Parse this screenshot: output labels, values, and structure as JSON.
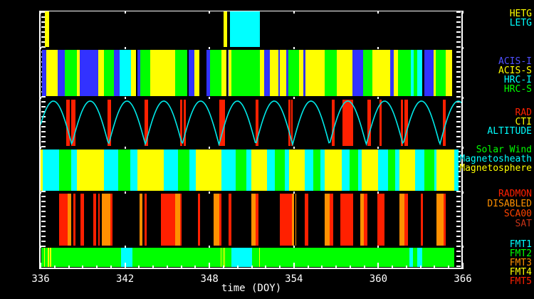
{
  "chart_data": {
    "type": "timeline",
    "xlabel": "time (DOY)",
    "x_range": [
      336,
      366
    ],
    "x_major_ticks": [
      336,
      342,
      348,
      354,
      360,
      366
    ],
    "x_minor_step": 1,
    "grid": false,
    "legend_position": "right",
    "colors": {
      "HETG": "#ffff00",
      "LETG": "#00ffff",
      "ACIS-I": "#3232ff",
      "ACIS-S": "#ffff00",
      "HRC-I": "#00ffff",
      "HRC-S": "#00ff00",
      "RAD": "#ff2000",
      "CTI": "#ffff00",
      "ALTITUDE": "#00e8e8",
      "Solar Wind": "#00ff00",
      "Magnetosheath": "#00ffff",
      "Magnetosphere": "#ffff00",
      "RADMON": "#ff2000",
      "DISABLED": "#ff9000",
      "SCA00": "#ff4400",
      "SAT": "#c63318",
      "FMT1": "#00ffff",
      "FMT2": "#00ff00",
      "FMT3": "#ff9000",
      "FMT4": "#ffff00",
      "FMT5": "#ff2000",
      "axis": "#ffffff",
      "background": "#000000"
    },
    "bands": [
      {
        "id": "grating",
        "labels": [
          {
            "text": "HETG",
            "color": "#ffff00"
          },
          {
            "text": "LETG",
            "color": "#00ffff"
          }
        ],
        "segments": [
          [
            336.3,
            336.62,
            "HETG"
          ],
          [
            349.0,
            349.25,
            "HETG"
          ],
          [
            349.45,
            351.6,
            "LETG"
          ]
        ]
      },
      {
        "id": "instruments",
        "labels": [
          {
            "text": "ACIS-I",
            "color": "#5050ff"
          },
          {
            "text": "ACIS-S",
            "color": "#ffff00"
          },
          {
            "text": "HRC-I",
            "color": "#00ffff"
          },
          {
            "text": "HRC-S",
            "color": "#00ff00"
          }
        ],
        "segments": [
          [
            336.1,
            336.4,
            "ACIS-I"
          ],
          [
            336.4,
            337.2,
            "ACIS-S"
          ],
          [
            337.2,
            337.7,
            "ACIS-I"
          ],
          [
            337.7,
            338.6,
            "HRC-S"
          ],
          [
            338.6,
            338.8,
            "ACIS-S"
          ],
          [
            338.8,
            340.1,
            "ACIS-I"
          ],
          [
            340.1,
            340.5,
            "ACIS-S"
          ],
          [
            340.5,
            341.2,
            "HRC-S"
          ],
          [
            341.2,
            341.6,
            "ACIS-I"
          ],
          [
            341.6,
            342.4,
            "HRC-I"
          ],
          [
            342.4,
            342.8,
            "ACIS-S"
          ],
          [
            342.9,
            343.1,
            "ACIS-I"
          ],
          [
            343.1,
            343.8,
            "HRC-S"
          ],
          [
            343.8,
            345.55,
            "ACIS-S"
          ],
          [
            345.55,
            346.4,
            "HRC-S"
          ],
          [
            346.5,
            346.95,
            "ACIS-I"
          ],
          [
            346.95,
            347.3,
            "ACIS-S"
          ],
          [
            347.8,
            348.05,
            "ACIS-I"
          ],
          [
            348.05,
            348.85,
            "HRC-S"
          ],
          [
            348.85,
            349.2,
            "ACIS-S"
          ],
          [
            349.28,
            349.36,
            "ACIS-I"
          ],
          [
            349.36,
            349.56,
            "ACIS-S"
          ],
          [
            349.56,
            351.6,
            "HRC-S"
          ],
          [
            351.6,
            351.88,
            "ACIS-S"
          ],
          [
            351.88,
            352.3,
            "ACIS-I"
          ],
          [
            352.3,
            352.88,
            "ACIS-S"
          ],
          [
            352.88,
            353.0,
            "ACIS-I"
          ],
          [
            353.0,
            353.45,
            "ACIS-S"
          ],
          [
            353.45,
            353.6,
            "ACIS-I"
          ],
          [
            353.6,
            354.36,
            "HRC-S"
          ],
          [
            354.36,
            354.67,
            "ACIS-S"
          ],
          [
            354.67,
            354.82,
            "ACIS-I"
          ],
          [
            354.82,
            356.18,
            "ACIS-S"
          ],
          [
            356.18,
            357.04,
            "HRC-S"
          ],
          [
            357.04,
            358.16,
            "ACIS-S"
          ],
          [
            358.16,
            358.91,
            "ACIS-I"
          ],
          [
            358.91,
            359.57,
            "HRC-S"
          ],
          [
            359.57,
            360.84,
            "ACIS-S"
          ],
          [
            360.84,
            361.09,
            "ACIS-I"
          ],
          [
            361.09,
            361.39,
            "ACIS-S"
          ],
          [
            361.39,
            362.3,
            "HRC-S"
          ],
          [
            362.3,
            362.51,
            "HRC-I"
          ],
          [
            362.51,
            362.76,
            "HRC-S"
          ],
          [
            362.76,
            363.11,
            "HRC-I"
          ],
          [
            363.26,
            363.92,
            "ACIS-I"
          ],
          [
            363.92,
            364.07,
            "ACIS-S"
          ],
          [
            364.07,
            364.78,
            "HRC-S"
          ],
          [
            364.78,
            365.24,
            "ACIS-S"
          ]
        ]
      },
      {
        "id": "rad",
        "labels": [
          {
            "text": "RAD",
            "color": "#ff2000"
          },
          {
            "text": "CTI",
            "color": "#ffff00"
          },
          {
            "text": "ALTITUDE",
            "color": "#00ffff"
          }
        ],
        "curve": {
          "name": "ALTITUDE",
          "first_peak": 336.91,
          "period": 2.615,
          "color": "#00e8e8"
        },
        "segments": [
          [
            337.8,
            338.05,
            "RAD"
          ],
          [
            338.15,
            338.5,
            "RAD"
          ],
          [
            340.75,
            341.0,
            "RAD"
          ],
          [
            343.4,
            343.65,
            "RAD"
          ],
          [
            345.9,
            346.05,
            "RAD"
          ],
          [
            346.15,
            346.3,
            "RAD"
          ],
          [
            348.7,
            349.1,
            "RAD"
          ],
          [
            351.28,
            351.48,
            "RAD"
          ],
          [
            353.6,
            353.76,
            "RAD"
          ],
          [
            353.81,
            353.92,
            "RAD"
          ],
          [
            356.69,
            356.89,
            "RAD"
          ],
          [
            357.45,
            358.21,
            "RAD"
          ],
          [
            359.22,
            359.47,
            "RAD"
          ],
          [
            360.08,
            360.25,
            "RAD"
          ],
          [
            361.6,
            361.75,
            "RAD"
          ],
          [
            361.85,
            362.1,
            "RAD"
          ],
          [
            364.6,
            364.8,
            "RAD"
          ]
        ]
      },
      {
        "id": "msphere",
        "labels": [
          {
            "text": "Solar Wind",
            "color": "#00ff00"
          },
          {
            "text": "Magnetosheath",
            "color": "#00ffff"
          },
          {
            "text": "Magnetosphere",
            "color": "#ffff00"
          }
        ],
        "segments": [
          [
            336.0,
            336.15,
            "Magnetosphere"
          ],
          [
            336.15,
            337.3,
            "Magnetosheath"
          ],
          [
            337.3,
            338.17,
            "Solar Wind"
          ],
          [
            338.17,
            338.58,
            "Magnetosheath"
          ],
          [
            338.58,
            340.5,
            "Magnetosphere"
          ],
          [
            340.5,
            341.51,
            "Magnetosheath"
          ],
          [
            341.51,
            342.37,
            "Solar Wind"
          ],
          [
            342.37,
            342.88,
            "Magnetosheath"
          ],
          [
            342.88,
            344.75,
            "Magnetosphere"
          ],
          [
            344.75,
            345.76,
            "Magnetosheath"
          ],
          [
            345.76,
            346.57,
            "Solar Wind"
          ],
          [
            346.57,
            347.03,
            "Magnetosheath"
          ],
          [
            347.03,
            348.85,
            "Magnetosphere"
          ],
          [
            348.85,
            349.86,
            "Magnetosheath"
          ],
          [
            349.86,
            350.62,
            "Solar Wind"
          ],
          [
            350.62,
            350.97,
            "Magnetosheath"
          ],
          [
            350.97,
            352.08,
            "Magnetosphere"
          ],
          [
            352.08,
            352.64,
            "Magnetosheath"
          ],
          [
            352.64,
            353.35,
            "Solar Wind"
          ],
          [
            353.35,
            353.65,
            "Magnetosheath"
          ],
          [
            353.65,
            354.77,
            "Magnetosphere"
          ],
          [
            354.77,
            355.37,
            "Magnetosheath"
          ],
          [
            355.37,
            355.88,
            "Solar Wind"
          ],
          [
            355.88,
            356.18,
            "Magnetosheath"
          ],
          [
            356.18,
            357.4,
            "Magnetosphere"
          ],
          [
            357.4,
            357.95,
            "Magnetosheath"
          ],
          [
            357.95,
            358.56,
            "Solar Wind"
          ],
          [
            358.56,
            358.81,
            "Magnetosheath"
          ],
          [
            358.81,
            359.98,
            "Magnetosphere"
          ],
          [
            359.98,
            360.68,
            "Magnetosheath"
          ],
          [
            360.68,
            361.19,
            "Solar Wind"
          ],
          [
            361.19,
            361.49,
            "Magnetosheath"
          ],
          [
            361.49,
            362.61,
            "Magnetosphere"
          ],
          [
            362.61,
            363.26,
            "Magnetosheath"
          ],
          [
            363.26,
            363.97,
            "Solar Wind"
          ],
          [
            363.97,
            364.12,
            "Magnetosheath"
          ],
          [
            364.12,
            365.39,
            "Magnetosphere"
          ],
          [
            365.39,
            365.7,
            "Magnetosheath"
          ]
        ]
      },
      {
        "id": "radmon",
        "labels": [
          {
            "text": "RADMON",
            "color": "#ff2000"
          },
          {
            "text": "DISABLED",
            "color": "#ff9000"
          },
          {
            "text": "SCA00",
            "color": "#ff4400"
          },
          {
            "text": "SAT",
            "color": "#c63318"
          }
        ],
        "segments": [
          [
            337.3,
            337.92,
            "RADMON"
          ],
          [
            337.92,
            338.17,
            "DISABLED"
          ],
          [
            338.33,
            338.48,
            "RADMON"
          ],
          [
            338.83,
            339.09,
            "RADMON"
          ],
          [
            339.74,
            339.94,
            "RADMON"
          ],
          [
            340.1,
            340.2,
            "RADMON"
          ],
          [
            340.35,
            340.96,
            "DISABLED"
          ],
          [
            340.96,
            341.11,
            "RADMON"
          ],
          [
            343.03,
            343.23,
            "DISABLED"
          ],
          [
            343.38,
            343.54,
            "RADMON"
          ],
          [
            344.55,
            345.56,
            "RADMON"
          ],
          [
            345.56,
            345.91,
            "DISABLED"
          ],
          [
            345.91,
            346.01,
            "RADMON"
          ],
          [
            347.18,
            347.33,
            "RADMON"
          ],
          [
            348.29,
            348.7,
            "DISABLED"
          ],
          [
            348.7,
            348.85,
            "RADMON"
          ],
          [
            349.35,
            349.56,
            "RADMON"
          ],
          [
            350.97,
            351.28,
            "DISABLED"
          ],
          [
            351.28,
            351.48,
            "RADMON"
          ],
          [
            353.0,
            353.86,
            "RADMON"
          ],
          [
            353.86,
            354.01,
            "DISABLED"
          ],
          [
            354.1,
            354.16,
            "DISABLED"
          ],
          [
            354.77,
            355.02,
            "RADMON"
          ],
          [
            356.18,
            356.54,
            "DISABLED"
          ],
          [
            356.54,
            356.79,
            "RADMON"
          ],
          [
            357.3,
            358.21,
            "RADMON"
          ],
          [
            358.71,
            358.96,
            "DISABLED"
          ],
          [
            358.96,
            359.22,
            "RADMON"
          ],
          [
            359.93,
            360.43,
            "RADMON"
          ],
          [
            361.49,
            361.85,
            "DISABLED"
          ],
          [
            361.85,
            362.1,
            "RADMON"
          ],
          [
            363.01,
            363.16,
            "RADMON"
          ],
          [
            364.12,
            364.63,
            "DISABLED"
          ],
          [
            364.63,
            364.78,
            "RADMON"
          ]
        ]
      },
      {
        "id": "fmt",
        "labels": [
          {
            "text": "FMT1",
            "color": "#00ffff"
          },
          {
            "text": "FMT2",
            "color": "#00ff00"
          },
          {
            "text": "FMT3",
            "color": "#ff9000"
          },
          {
            "text": "FMT4",
            "color": "#ffff00"
          },
          {
            "text": "FMT5",
            "color": "#ff2000"
          }
        ],
        "segments": [
          [
            336.05,
            365.4,
            "FMT2"
          ],
          [
            341.72,
            342.52,
            "FMT1"
          ],
          [
            349.56,
            351.02,
            "FMT1"
          ],
          [
            362.2,
            362.45,
            "FMT1"
          ],
          [
            362.76,
            363.11,
            "FMT1"
          ],
          [
            336.25,
            336.32,
            "FMT4"
          ],
          [
            336.53,
            336.6,
            "FMT4"
          ],
          [
            336.68,
            336.75,
            "FMT4"
          ],
          [
            348.78,
            348.85,
            "FMT4"
          ],
          [
            348.93,
            349.0,
            "FMT4"
          ],
          [
            349.04,
            349.11,
            "FMT4"
          ],
          [
            351.53,
            351.6,
            "FMT4"
          ]
        ]
      }
    ]
  }
}
